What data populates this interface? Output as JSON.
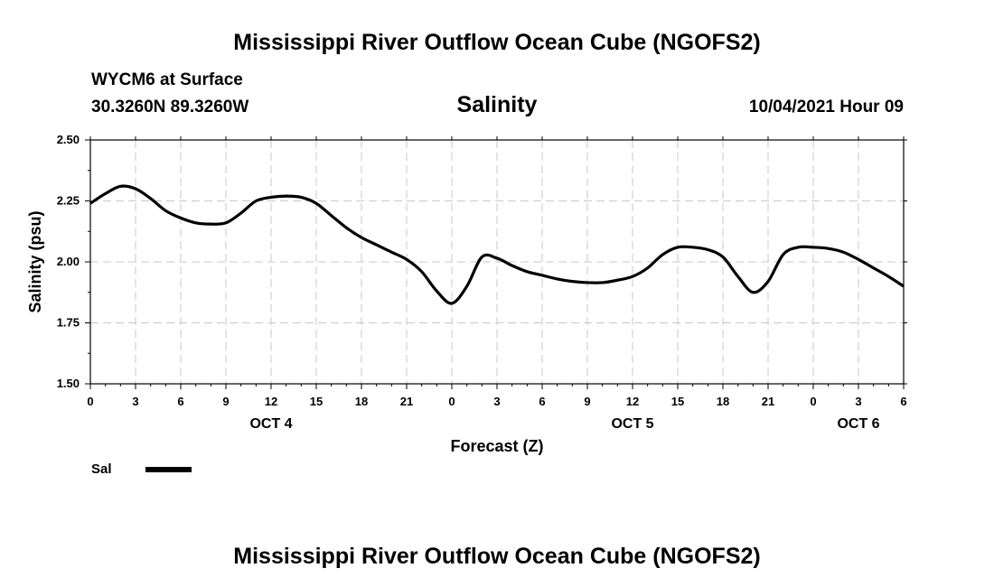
{
  "header": {
    "title": "Mississippi River Outflow Ocean Cube (NGOFS2)",
    "station": "WYCM6 at Surface",
    "coords": "30.3260N  89.3260W",
    "variable": "Salinity",
    "datetime": "10/04/2021 Hour 09"
  },
  "footer": {
    "title": "Mississippi River Outflow Ocean Cube (NGOFS2)"
  },
  "legend": {
    "label": "Sal"
  },
  "chart_data": {
    "type": "line",
    "title": "Salinity",
    "xlabel": "Forecast (Z)",
    "ylabel": "Salinity (psu)",
    "xlim": [
      0,
      54
    ],
    "ylim": [
      1.5,
      2.5
    ],
    "grid": true,
    "x_tick_values": [
      0,
      3,
      6,
      9,
      12,
      15,
      18,
      21,
      24,
      27,
      30,
      33,
      36,
      39,
      42,
      45,
      48,
      51,
      54
    ],
    "x_tick_labels": [
      "0",
      "3",
      "6",
      "9",
      "12",
      "15",
      "18",
      "21",
      "0",
      "3",
      "6",
      "9",
      "12",
      "15",
      "18",
      "21",
      "0",
      "3",
      "6"
    ],
    "y_tick_values": [
      1.5,
      1.75,
      2.0,
      2.25,
      2.5
    ],
    "y_tick_labels": [
      "1.50",
      "1.75",
      "2.00",
      "2.25",
      "2.50"
    ],
    "date_labels": [
      {
        "x": 12,
        "label": "OCT 4"
      },
      {
        "x": 36,
        "label": "OCT 5"
      },
      {
        "x": 51,
        "label": "OCT 6"
      }
    ],
    "series": [
      {
        "name": "Sal",
        "color": "#000000",
        "x": [
          0,
          1,
          2,
          3,
          4,
          5,
          6,
          7,
          8,
          9,
          10,
          11,
          12,
          13,
          14,
          15,
          16,
          17,
          18,
          19,
          20,
          21,
          22,
          23,
          24,
          25,
          26,
          27,
          28,
          29,
          30,
          31,
          32,
          33,
          34,
          35,
          36,
          37,
          38,
          39,
          40,
          41,
          42,
          43,
          44,
          45,
          46,
          47,
          48,
          49,
          50,
          51,
          52,
          53,
          54
        ],
        "values": [
          2.24,
          2.28,
          2.31,
          2.3,
          2.26,
          2.21,
          2.18,
          2.16,
          2.155,
          2.16,
          2.2,
          2.25,
          2.265,
          2.27,
          2.265,
          2.24,
          2.19,
          2.14,
          2.1,
          2.07,
          2.04,
          2.01,
          1.96,
          1.88,
          1.83,
          1.9,
          2.02,
          2.015,
          1.985,
          1.96,
          1.945,
          1.93,
          1.92,
          1.915,
          1.915,
          1.925,
          1.94,
          1.975,
          2.03,
          2.06,
          2.06,
          2.05,
          2.02,
          1.94,
          1.875,
          1.92,
          2.03,
          2.06,
          2.06,
          2.055,
          2.04,
          2.01,
          1.975,
          1.94,
          1.9
        ]
      }
    ]
  }
}
